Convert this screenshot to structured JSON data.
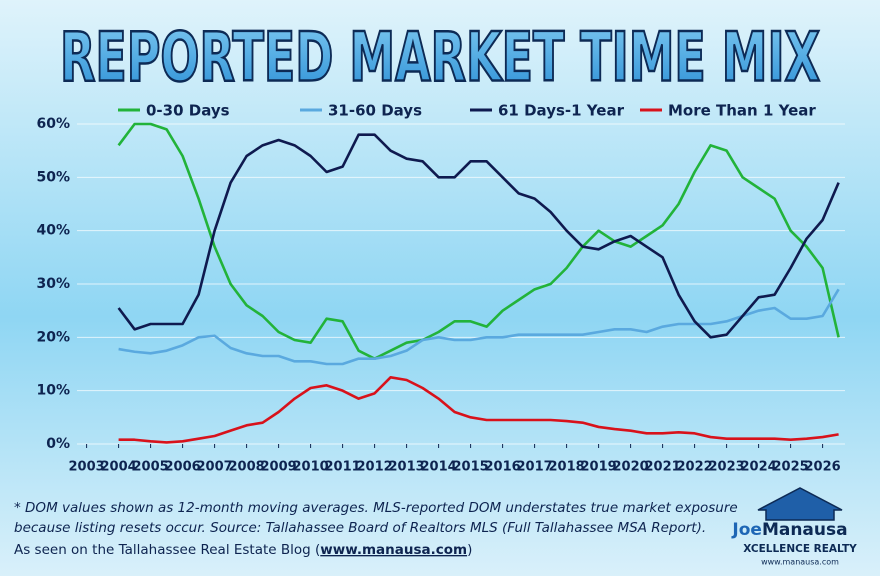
{
  "chart_data": {
    "type": "line",
    "title": "REPORTED MARKET TIME  MIX",
    "x": [
      2004,
      2004.5,
      2005,
      2005.5,
      2006,
      2006.5,
      2007,
      2007.5,
      2008,
      2008.5,
      2009,
      2009.5,
      2010,
      2010.5,
      2011,
      2011.5,
      2012,
      2012.5,
      2013,
      2013.5,
      2014,
      2014.5,
      2015,
      2015.5,
      2016,
      2016.5,
      2017,
      2017.5,
      2018,
      2018.5,
      2019,
      2019.5,
      2020,
      2020.5,
      2021,
      2021.5,
      2022,
      2022.5,
      2023,
      2023.5,
      2024,
      2024.5,
      2025,
      2025.5,
      2026,
      2026.5
    ],
    "series": [
      {
        "name": "0-30 Days",
        "color": "#22b33a",
        "values": [
          56,
          60,
          60,
          59,
          54,
          46,
          37,
          30,
          26,
          24,
          21,
          19.5,
          19,
          23.5,
          23,
          17.5,
          16,
          17.5,
          19,
          19.5,
          21,
          23,
          23,
          22,
          25,
          27,
          29,
          30,
          33,
          37,
          40,
          38,
          37,
          39,
          41,
          45,
          51,
          56,
          55,
          50,
          48,
          46,
          40,
          37,
          33,
          20
        ]
      },
      {
        "name": "31-60 Days",
        "color": "#5aa9df",
        "values": [
          17.8,
          17.3,
          17,
          17.5,
          18.5,
          20,
          20.3,
          18,
          17,
          16.5,
          16.5,
          15.5,
          15.5,
          15,
          15,
          16,
          16,
          16.5,
          17.5,
          19.5,
          20,
          19.5,
          19.5,
          20,
          20,
          20.5,
          20.5,
          20.5,
          20.5,
          20.5,
          21,
          21.5,
          21.5,
          21,
          22,
          22.5,
          22.5,
          22.5,
          23,
          24,
          25,
          25.5,
          23.5,
          23.5,
          24,
          29
        ]
      },
      {
        "name": "61 Days-1 Year",
        "color": "#0f1a4f",
        "values": [
          25.5,
          21.5,
          22.5,
          22.5,
          22.5,
          28,
          40,
          49,
          54,
          56,
          57,
          56,
          54,
          51,
          52,
          58,
          58,
          55,
          53.5,
          53,
          50,
          50,
          53,
          53,
          50,
          47,
          46,
          43.5,
          40,
          37,
          36.5,
          38,
          39,
          37,
          35,
          28,
          23,
          20,
          20.5,
          24,
          27.5,
          28,
          33,
          38.5,
          42,
          49
        ]
      },
      {
        "name": "More Than 1 Year",
        "color": "#d8121b",
        "values": [
          0.8,
          0.8,
          0.5,
          0.3,
          0.5,
          1,
          1.5,
          2.5,
          3.5,
          4,
          6,
          8.5,
          10.5,
          11,
          10,
          8.5,
          9.5,
          12.5,
          12,
          10.5,
          8.5,
          6,
          5,
          4.5,
          4.5,
          4.5,
          4.5,
          4.5,
          4.3,
          4,
          3.2,
          2.8,
          2.5,
          2,
          2,
          2.2,
          2,
          1.3,
          1,
          1,
          1,
          1,
          0.8,
          1,
          1.3,
          1.8
        ]
      }
    ],
    "xlim": [
      2002.7,
      2026.7
    ],
    "xticks": [
      2003,
      2004,
      2005,
      2006,
      2007,
      2008,
      2009,
      2010,
      2011,
      2012,
      2013,
      2014,
      2015,
      2016,
      2017,
      2018,
      2019,
      2020,
      2021,
      2022,
      2023,
      2024,
      2025,
      2026
    ],
    "ylim": [
      0,
      60
    ],
    "yticks": [
      {
        "value": 0,
        "label": "0%"
      },
      {
        "value": 10,
        "label": "10%"
      },
      {
        "value": 20,
        "label": "20%"
      },
      {
        "value": 30,
        "label": "30%"
      },
      {
        "value": 40,
        "label": "40%"
      },
      {
        "value": 50,
        "label": "50%"
      },
      {
        "value": 60,
        "label": "60%"
      }
    ],
    "grid": true,
    "notes": [
      "* DOM values shown as 12-month moving averages. MLS-reported DOM understates true market exposure",
      "because listing resets occur. Source: Tallahassee Board of Realtors MLS (Full Tallahassee MSA Report)."
    ],
    "credit": {
      "prefix": "As seen on the Tallahassee Real Estate Blog (",
      "link": "www.manausa.com",
      "suffix": ")"
    },
    "logo": {
      "name1": "Joe",
      "name2": "Manausa",
      "tagline": "XCELLENCE REALTY",
      "url": "www.manausa.com"
    }
  }
}
